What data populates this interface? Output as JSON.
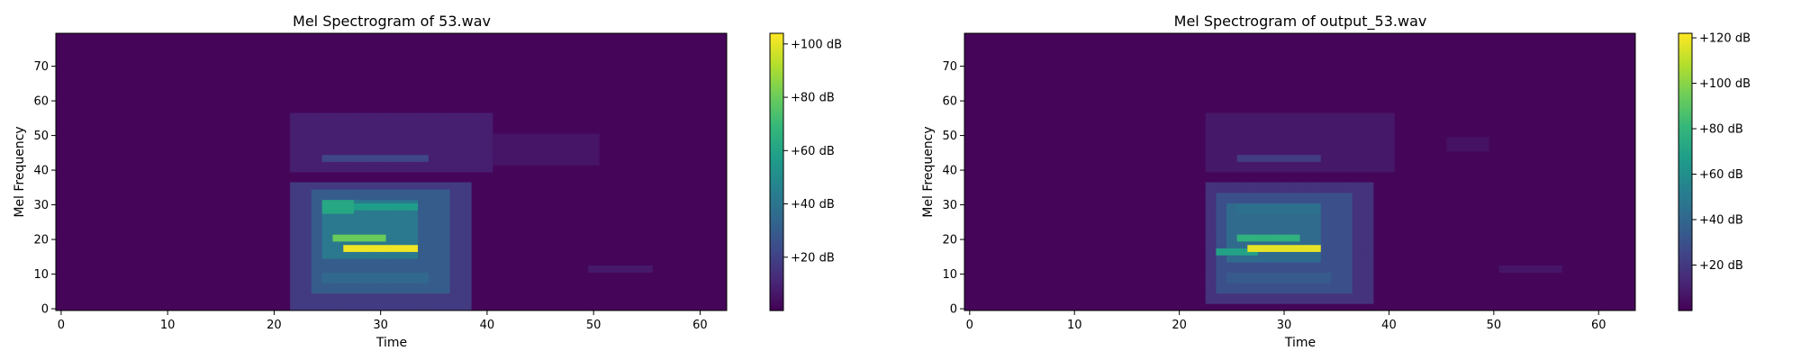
{
  "chart_data": [
    {
      "type": "heatmap",
      "title": "Mel Spectrogram of 53.wav",
      "xlabel": "Time",
      "ylabel": "Mel Frequency",
      "xlim": [
        -0.5,
        62.5
      ],
      "ylim": [
        -0.5,
        79.5
      ],
      "xticks": [
        0,
        10,
        20,
        30,
        40,
        50,
        60
      ],
      "yticks": [
        0,
        10,
        20,
        30,
        40,
        50,
        60,
        70
      ],
      "colormap": "viridis",
      "colorbar": {
        "vmin": 0,
        "vmax": 104,
        "ticks": [
          20,
          40,
          60,
          80,
          100
        ],
        "tick_labels": [
          "+20 dB",
          "+40 dB",
          "+60 dB",
          "+80 dB",
          "+100 dB"
        ]
      },
      "regions": [
        {
          "t": [
            22,
            38
          ],
          "f": [
            0,
            36
          ],
          "level": 18
        },
        {
          "t": [
            24,
            36
          ],
          "f": [
            5,
            34
          ],
          "level": 30
        },
        {
          "t": [
            25,
            33
          ],
          "f": [
            15,
            31
          ],
          "level": 42
        },
        {
          "t": [
            27,
            33
          ],
          "f": [
            17,
            18
          ],
          "level": 102
        },
        {
          "t": [
            26,
            30
          ],
          "f": [
            20,
            21
          ],
          "level": 80
        },
        {
          "t": [
            25,
            27
          ],
          "f": [
            28,
            31
          ],
          "level": 62
        },
        {
          "t": [
            27,
            33
          ],
          "f": [
            29,
            30
          ],
          "level": 58
        },
        {
          "t": [
            25,
            34
          ],
          "f": [
            8,
            10
          ],
          "level": 35
        },
        {
          "t": [
            25,
            34
          ],
          "f": [
            43,
            44
          ],
          "level": 22
        },
        {
          "t": [
            22,
            40
          ],
          "f": [
            40,
            56
          ],
          "level": 9
        },
        {
          "t": [
            38,
            50
          ],
          "f": [
            42,
            50
          ],
          "level": 6
        },
        {
          "t": [
            50,
            55
          ],
          "f": [
            11,
            12
          ],
          "level": 7
        }
      ]
    },
    {
      "type": "heatmap",
      "title": "Mel Spectrogram of output_53.wav",
      "xlabel": "Time",
      "ylabel": "Mel Frequency",
      "xlim": [
        -0.5,
        63.5
      ],
      "ylim": [
        -0.5,
        79.5
      ],
      "xticks": [
        0,
        10,
        20,
        30,
        40,
        50,
        60
      ],
      "yticks": [
        0,
        10,
        20,
        30,
        40,
        50,
        60,
        70
      ],
      "colormap": "viridis",
      "colorbar": {
        "vmin": 0,
        "vmax": 122,
        "ticks": [
          20,
          40,
          60,
          80,
          100,
          120
        ],
        "tick_labels": [
          "+20 dB",
          "+40 dB",
          "+60 dB",
          "+80 dB",
          "+100 dB",
          "+120 dB"
        ]
      },
      "regions": [
        {
          "t": [
            23,
            38
          ],
          "f": [
            2,
            36
          ],
          "level": 18
        },
        {
          "t": [
            24,
            36
          ],
          "f": [
            5,
            33
          ],
          "level": 30
        },
        {
          "t": [
            25,
            33
          ],
          "f": [
            14,
            30
          ],
          "level": 42
        },
        {
          "t": [
            27,
            33
          ],
          "f": [
            17,
            18
          ],
          "level": 118
        },
        {
          "t": [
            26,
            31
          ],
          "f": [
            20,
            21
          ],
          "level": 78
        },
        {
          "t": [
            24,
            27
          ],
          "f": [
            16,
            17
          ],
          "level": 70
        },
        {
          "t": [
            26,
            33
          ],
          "f": [
            28,
            30
          ],
          "level": 45
        },
        {
          "t": [
            25,
            34
          ],
          "f": [
            8,
            10
          ],
          "level": 35
        },
        {
          "t": [
            26,
            33
          ],
          "f": [
            43,
            44
          ],
          "level": 22
        },
        {
          "t": [
            23,
            40
          ],
          "f": [
            40,
            56
          ],
          "level": 8
        },
        {
          "t": [
            46,
            49
          ],
          "f": [
            46,
            49
          ],
          "level": 6
        },
        {
          "t": [
            51,
            56
          ],
          "f": [
            11,
            12
          ],
          "level": 7
        }
      ]
    }
  ]
}
